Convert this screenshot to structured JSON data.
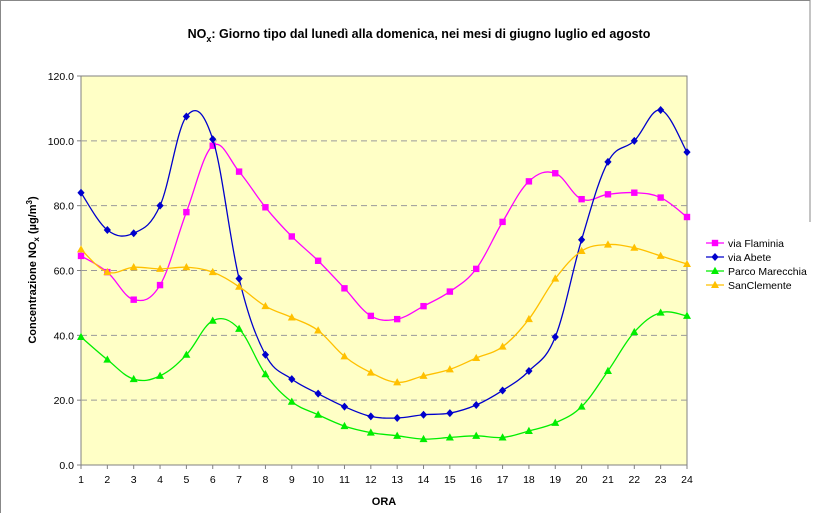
{
  "chart_data": {
    "type": "line",
    "title": {
      "main": "NO",
      "sub": "x",
      "rest": ": Giorno tipo dal lunedì alla domenica, nei mesi di giugno luglio ed agosto"
    },
    "xlabel": "ORA",
    "ylabel": {
      "main": "Concentrazione NO",
      "sub": "x",
      "unit_open": " (µg/m",
      "sup": "3",
      "unit_close": ")"
    },
    "x": [
      "1",
      "2",
      "3",
      "4",
      "5",
      "6",
      "7",
      "8",
      "9",
      "10",
      "11",
      "12",
      "13",
      "14",
      "15",
      "16",
      "17",
      "18",
      "19",
      "20",
      "21",
      "22",
      "23",
      "24"
    ],
    "y_ticks": [
      "0.0",
      "20.0",
      "40.0",
      "60.0",
      "80.0",
      "100.0",
      "120.0"
    ],
    "ylim": [
      0,
      120
    ],
    "grid": "horizontal dashed",
    "legend_position": "right",
    "plot_background": "#FFFFC6",
    "series": [
      {
        "name": "via Flaminia",
        "color": "#FF00FF",
        "marker": "square",
        "values": [
          64.5,
          59.5,
          51.0,
          55.5,
          78.0,
          98.5,
          90.5,
          79.5,
          70.5,
          63.0,
          54.5,
          46.0,
          45.0,
          49.0,
          53.5,
          60.5,
          75.0,
          87.5,
          90.0,
          82.0,
          83.5,
          84.0,
          82.5,
          76.5
        ]
      },
      {
        "name": "via Abete",
        "color": "#0000CC",
        "marker": "diamond",
        "values": [
          84.0,
          72.5,
          71.5,
          80.0,
          107.5,
          100.5,
          57.5,
          34.0,
          26.5,
          22.0,
          18.0,
          15.0,
          14.5,
          15.5,
          16.0,
          18.5,
          23.0,
          29.0,
          39.5,
          69.5,
          93.5,
          100.0,
          109.5,
          96.5
        ]
      },
      {
        "name": "Parco Marecchia",
        "color": "#00EE00",
        "marker": "triangle",
        "values": [
          39.5,
          32.5,
          26.5,
          27.5,
          34.0,
          44.5,
          42.0,
          28.0,
          19.5,
          15.5,
          12.0,
          10.0,
          9.0,
          8.0,
          8.5,
          9.0,
          8.5,
          10.5,
          13.0,
          18.0,
          29.0,
          41.0,
          47.0,
          46.0
        ]
      },
      {
        "name": "SanClemente",
        "color": "#FFC000",
        "marker": "triangle",
        "values": [
          66.5,
          59.5,
          61.0,
          60.5,
          61.0,
          59.5,
          55.0,
          49.0,
          45.5,
          41.5,
          33.5,
          28.5,
          25.5,
          27.5,
          29.5,
          33.0,
          36.5,
          45.0,
          57.5,
          66.0,
          68.0,
          67.0,
          64.5,
          62.0
        ]
      }
    ]
  }
}
